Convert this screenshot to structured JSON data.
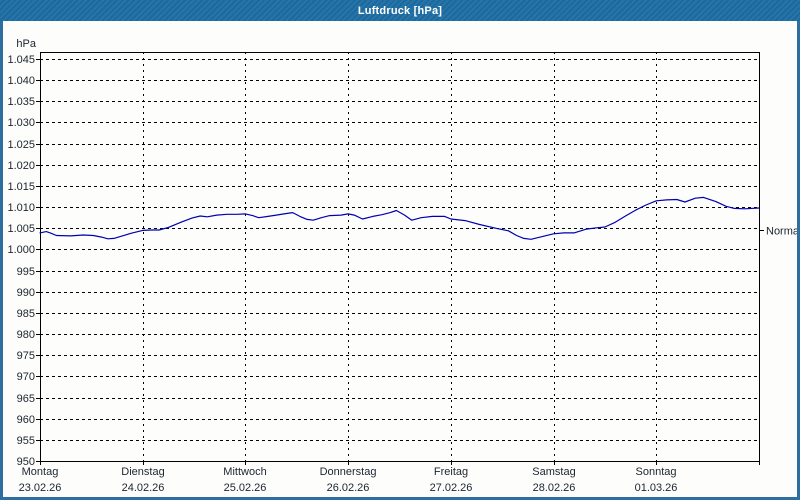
{
  "window": {
    "title": "Luftdruck [hPa]"
  },
  "colors": {
    "titlebar": "#1e6fa5",
    "window_border": "#2f6f9f",
    "content_bg": "#fdfefb",
    "grid": "#000000",
    "text": "#1c2430",
    "line": "#0000b2"
  },
  "chart_data": {
    "type": "line",
    "title": "Luftdruck [hPa]",
    "ylabel": "hPa",
    "xlabel": "",
    "ylim": [
      950,
      1046.6
    ],
    "grid": "dashed",
    "legend_position": "none",
    "y_tick_step": 5,
    "y_ticks": [
      {
        "value": 1045,
        "label": "1.045"
      },
      {
        "value": 1040,
        "label": "1.040"
      },
      {
        "value": 1035,
        "label": "1.035"
      },
      {
        "value": 1030,
        "label": "1.030"
      },
      {
        "value": 1025,
        "label": "1.025"
      },
      {
        "value": 1020,
        "label": "1.020"
      },
      {
        "value": 1015,
        "label": "1.015"
      },
      {
        "value": 1010,
        "label": "1.010"
      },
      {
        "value": 1005,
        "label": "1.005"
      },
      {
        "value": 1000,
        "label": "1.000"
      },
      {
        "value": 995,
        "label": "995"
      },
      {
        "value": 990,
        "label": "990"
      },
      {
        "value": 985,
        "label": "985"
      },
      {
        "value": 980,
        "label": "980"
      },
      {
        "value": 975,
        "label": "975"
      },
      {
        "value": 970,
        "label": "970"
      },
      {
        "value": 965,
        "label": "965"
      },
      {
        "value": 960,
        "label": "960"
      },
      {
        "value": 955,
        "label": "955"
      },
      {
        "value": 950,
        "label": "950"
      }
    ],
    "days": [
      {
        "name": "Montag",
        "date": "23.02.26"
      },
      {
        "name": "Dienstag",
        "date": "24.02.26"
      },
      {
        "name": "Mittwoch",
        "date": "25.02.26"
      },
      {
        "name": "Donnerstag",
        "date": "26.02.26"
      },
      {
        "name": "Freitag",
        "date": "27.02.26"
      },
      {
        "name": "Samstag",
        "date": "28.02.26"
      },
      {
        "name": "Sonntag",
        "date": "01.03.26"
      }
    ],
    "normal_marker": {
      "label": "Normal",
      "value": 1004.6
    },
    "series": [
      {
        "name": "Luftdruck",
        "unit": "hPa",
        "color": "#0000b2",
        "points": [
          [
            0.0,
            1003.9
          ],
          [
            0.06,
            1004.2
          ],
          [
            0.1,
            1003.9
          ],
          [
            0.16,
            1003.3
          ],
          [
            0.3,
            1003.2
          ],
          [
            0.42,
            1003.4
          ],
          [
            0.52,
            1003.3
          ],
          [
            0.6,
            1002.9
          ],
          [
            0.66,
            1002.5
          ],
          [
            0.72,
            1002.6
          ],
          [
            0.8,
            1003.2
          ],
          [
            0.9,
            1003.9
          ],
          [
            1.0,
            1004.5
          ],
          [
            1.08,
            1004.6
          ],
          [
            1.16,
            1004.6
          ],
          [
            1.25,
            1005.2
          ],
          [
            1.38,
            1006.5
          ],
          [
            1.48,
            1007.4
          ],
          [
            1.56,
            1007.9
          ],
          [
            1.63,
            1007.7
          ],
          [
            1.72,
            1008.1
          ],
          [
            1.82,
            1008.3
          ],
          [
            1.92,
            1008.3
          ],
          [
            2.0,
            1008.4
          ],
          [
            2.07,
            1008.0
          ],
          [
            2.13,
            1007.5
          ],
          [
            2.22,
            1007.8
          ],
          [
            2.3,
            1008.1
          ],
          [
            2.4,
            1008.5
          ],
          [
            2.46,
            1008.7
          ],
          [
            2.53,
            1007.8
          ],
          [
            2.6,
            1007.1
          ],
          [
            2.66,
            1006.9
          ],
          [
            2.74,
            1007.5
          ],
          [
            2.82,
            1008.0
          ],
          [
            2.93,
            1008.1
          ],
          [
            3.0,
            1008.4
          ],
          [
            3.06,
            1008.1
          ],
          [
            3.14,
            1007.2
          ],
          [
            3.24,
            1007.8
          ],
          [
            3.33,
            1008.2
          ],
          [
            3.41,
            1008.7
          ],
          [
            3.47,
            1009.2
          ],
          [
            3.55,
            1008.1
          ],
          [
            3.62,
            1006.9
          ],
          [
            3.71,
            1007.5
          ],
          [
            3.82,
            1007.8
          ],
          [
            3.94,
            1007.8
          ],
          [
            4.0,
            1007.2
          ],
          [
            4.14,
            1006.8
          ],
          [
            4.28,
            1005.9
          ],
          [
            4.44,
            1005.0
          ],
          [
            4.56,
            1004.4
          ],
          [
            4.64,
            1003.3
          ],
          [
            4.71,
            1002.6
          ],
          [
            4.78,
            1002.4
          ],
          [
            4.87,
            1002.9
          ],
          [
            5.0,
            1003.7
          ],
          [
            5.1,
            1003.9
          ],
          [
            5.2,
            1003.9
          ],
          [
            5.32,
            1004.8
          ],
          [
            5.42,
            1005.1
          ],
          [
            5.5,
            1005.3
          ],
          [
            5.6,
            1006.4
          ],
          [
            5.7,
            1007.9
          ],
          [
            5.8,
            1009.3
          ],
          [
            5.9,
            1010.5
          ],
          [
            6.0,
            1011.5
          ],
          [
            6.1,
            1011.7
          ],
          [
            6.2,
            1011.8
          ],
          [
            6.28,
            1011.2
          ],
          [
            6.38,
            1012.1
          ],
          [
            6.46,
            1012.3
          ],
          [
            6.58,
            1011.3
          ],
          [
            6.68,
            1010.2
          ],
          [
            6.76,
            1009.7
          ],
          [
            6.86,
            1009.6
          ],
          [
            7.0,
            1009.8
          ]
        ]
      }
    ]
  }
}
